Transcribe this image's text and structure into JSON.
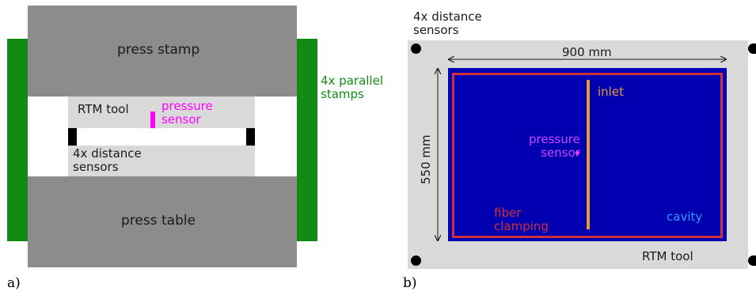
{
  "panel_a": {
    "label": "a)",
    "press_stamp": "press stamp",
    "press_table": "press table",
    "rtm_tool": "RTM tool",
    "pressure_sensor": "pressure\nsensor",
    "distance_sensors": "4x distance\nsensors",
    "parallel_stamps": "4x parallel\nstamps",
    "colors": {
      "press": "#8c8c8c",
      "tool": "#d9d9d9",
      "stamps": "#138a13",
      "sensor": "#ff00ff",
      "dist_sensor": "#000000"
    }
  },
  "panel_b": {
    "label": "b)",
    "distance_sensors": "4x distance\nsensors",
    "width_dim": "900 mm",
    "height_dim": "550 mm",
    "inlet": "inlet",
    "pressure_sensor": "pressure\nsensor",
    "fiber_clamping": "fiber\nclamping",
    "cavity": "cavity",
    "rtm_tool": "RTM tool",
    "colors": {
      "tool": "#d9d9d9",
      "cavity": "#0000b0",
      "clamping": "#d0303a",
      "inlet": "#e89a30",
      "sensor": "#ff40ff",
      "cavity_text": "#2f9bff"
    }
  }
}
